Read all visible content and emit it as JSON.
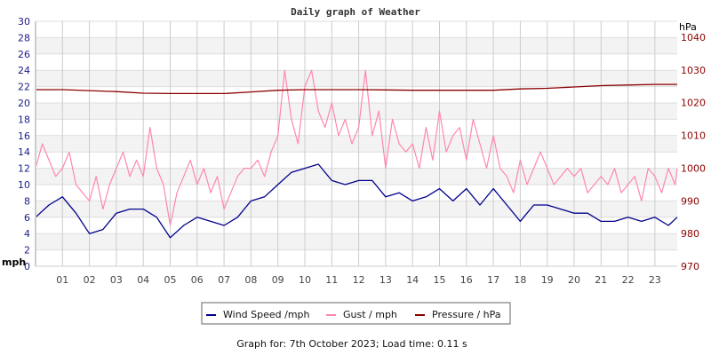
{
  "chart_data": {
    "type": "line",
    "title": "Daily graph of Weather",
    "footer": "Graph for: 7th October 2023; Load time: 0.11 s",
    "left_axis": {
      "label": "mph",
      "range": [
        0,
        30
      ],
      "ticks": [
        0,
        2,
        4,
        6,
        8,
        10,
        12,
        14,
        16,
        18,
        20,
        22,
        24,
        26,
        28,
        30
      ],
      "color": "#1a1a8c"
    },
    "right_axis": {
      "label": "hPa",
      "range": [
        970,
        1040
      ],
      "ticks": [
        970,
        980,
        990,
        1000,
        1010,
        1020,
        1030,
        1040
      ],
      "color": "#8b0000"
    },
    "x_axis": {
      "range_hours": [
        0,
        24
      ],
      "ticks": [
        "01",
        "02",
        "03",
        "04",
        "05",
        "06",
        "07",
        "08",
        "09",
        "10",
        "11",
        "12",
        "13",
        "14",
        "15",
        "16",
        "17",
        "18",
        "19",
        "20",
        "21",
        "22",
        "23"
      ]
    },
    "grid": true,
    "legend_placement": "bottom",
    "series": [
      {
        "name": "Wind Speed /mph",
        "axis": "left",
        "color": "#00008b",
        "interval_hours": 0.5,
        "values": [
          6,
          7.5,
          8.5,
          6.5,
          4,
          4.5,
          6.5,
          7,
          7,
          6,
          3.5,
          5,
          6,
          5.5,
          5,
          6,
          8,
          8.5,
          10,
          11.5,
          12,
          12.5,
          10.5,
          10,
          10.5,
          10.5,
          8.5,
          9,
          8,
          8.5,
          9.5,
          8,
          9.5,
          7.5,
          9.5,
          7.5,
          5.5,
          7.5,
          7.5,
          7,
          6.5,
          6.5,
          5.5,
          5.5,
          6,
          5.5,
          6,
          5,
          6
        ]
      },
      {
        "name": "Gust / mph",
        "axis": "left",
        "color": "#ff88aa",
        "interval_hours": 0.25,
        "values": [
          12,
          15,
          13,
          11,
          12,
          14,
          10,
          9,
          8,
          11,
          7,
          10,
          12,
          14,
          11,
          13,
          11,
          17,
          12,
          10,
          5,
          9,
          11,
          13,
          10,
          12,
          9,
          11,
          7,
          9,
          11,
          12,
          12,
          13,
          11,
          14,
          16,
          24,
          18,
          15,
          22,
          24,
          19,
          17,
          20,
          16,
          18,
          15,
          17,
          24,
          16,
          19,
          12,
          18,
          15,
          14,
          15,
          12,
          17,
          13,
          19,
          14,
          16,
          17,
          13,
          18,
          15,
          12,
          16,
          12,
          11,
          9,
          13,
          10,
          12,
          14,
          12,
          10,
          11,
          12,
          11,
          12,
          9,
          10,
          11,
          10,
          12,
          9,
          10,
          11,
          8,
          12,
          11,
          9,
          12,
          10,
          12
        ]
      },
      {
        "name": "Pressure / hPa",
        "axis": "right",
        "color": "#8b0000",
        "interval_hours": 1,
        "values": [
          1024,
          1024,
          1023.7,
          1023.4,
          1022.9,
          1022.8,
          1022.8,
          1022.8,
          1023.3,
          1023.8,
          1024,
          1024,
          1024,
          1023.9,
          1023.8,
          1023.8,
          1023.8,
          1023.8,
          1024.2,
          1024.4,
          1024.8,
          1025.2,
          1025.4,
          1025.6,
          1025.6
        ]
      }
    ]
  }
}
